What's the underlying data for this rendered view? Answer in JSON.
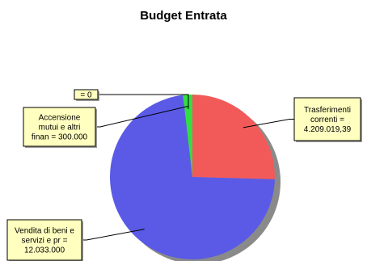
{
  "chart_data": {
    "type": "pie",
    "title": "Budget Entrata",
    "slices": [
      {
        "label_lines": [
          "Trasferimenti",
          "correnti =",
          "4.209.019,39"
        ],
        "value": 4209019.39,
        "color": "#f25a5a"
      },
      {
        "label_lines": [
          "Vendita di beni e",
          "servizi e pr =",
          "12.033.000"
        ],
        "value": 12033000,
        "color": "#5a5ae6"
      },
      {
        "label_lines": [
          "Accensione",
          "mutui e altri",
          "finan = 300.000"
        ],
        "value": 300000,
        "color": "#33dd44"
      },
      {
        "label_lines": [
          "= 0"
        ],
        "value": 0,
        "color": "#e6e640"
      }
    ],
    "colors": {
      "label_box_fill": "#ffffc0",
      "shadow": "#8a8a8a",
      "leader": "#000000"
    }
  }
}
